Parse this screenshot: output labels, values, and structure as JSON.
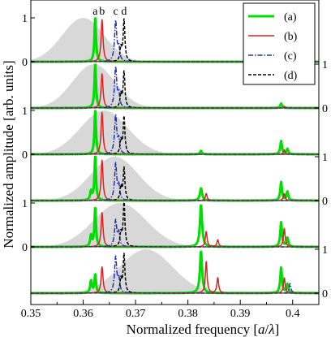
{
  "chart_data": {
    "type": "line",
    "xlabel": "Normalized frequency [a/λ]",
    "xlabel_parts": [
      "Normalized frequency [",
      "a",
      "/",
      "λ",
      "]"
    ],
    "ylabel": "Normalized amplitude [arb. units]",
    "xlim": [
      0.35,
      0.405
    ],
    "xticks": [
      {
        "value": 0.35,
        "label": "0.35"
      },
      {
        "value": 0.36,
        "label": "0.36"
      },
      {
        "value": 0.37,
        "label": "0.37"
      },
      {
        "value": 0.38,
        "label": "0.38"
      },
      {
        "value": 0.39,
        "label": "0.39"
      },
      {
        "value": 0.4,
        "label": "0.4"
      }
    ],
    "panel_tick_labels": {
      "zero": "0",
      "one": "1"
    },
    "peak_markers": [
      {
        "label": "a",
        "x": 0.3623
      },
      {
        "label": "b",
        "x": 0.3636
      },
      {
        "label": "c",
        "x": 0.3662
      },
      {
        "label": "d",
        "x": 0.3678
      }
    ],
    "legend": {
      "placement": "top-right",
      "entries": [
        {
          "label": "(a)",
          "color": "#00dd00",
          "style": "solid-thick"
        },
        {
          "label": "(b)",
          "color": "#dd2222",
          "style": "solid"
        },
        {
          "label": "(c)",
          "color": "#2233bb",
          "style": "dash-dot"
        },
        {
          "label": "(d)",
          "color": "#000000",
          "style": "dashed"
        }
      ]
    },
    "series_styles": [
      {
        "key": "a",
        "color": "#00dd00",
        "width": 3,
        "dash": ""
      },
      {
        "key": "b",
        "color": "#dd2222",
        "width": 1.5,
        "dash": ""
      },
      {
        "key": "c",
        "color": "#2233bb",
        "width": 1.5,
        "dash": "6,2,1.5,2"
      },
      {
        "key": "d",
        "color": "#000000",
        "width": 1.5,
        "dash": "4,2"
      }
    ],
    "excitation_color": "#d8d8d8",
    "panels": [
      {
        "excitation": {
          "center": 0.36,
          "width": 0.004
        },
        "series": {
          "a": [
            {
              "x": 0.3623,
              "a": 1.0,
              "w": 0.00018
            }
          ],
          "b": [
            {
              "x": 0.3636,
              "a": 0.96,
              "w": 0.00022
            }
          ],
          "c": [
            {
              "x": 0.3662,
              "a": 0.92,
              "w": 0.00025
            },
            {
              "x": 0.3668,
              "a": 0.3,
              "w": 0.0002
            }
          ],
          "d": [
            {
              "x": 0.3678,
              "a": 0.95,
              "w": 0.0002
            },
            {
              "x": 0.3672,
              "a": 0.3,
              "w": 0.0002
            }
          ]
        }
      },
      {
        "excitation": {
          "center": 0.362,
          "width": 0.004
        },
        "series": {
          "a": [
            {
              "x": 0.3623,
              "a": 1.0,
              "w": 0.00018
            },
            {
              "x": 0.3978,
              "a": 0.1,
              "w": 0.0002
            }
          ],
          "b": [
            {
              "x": 0.3636,
              "a": 0.78,
              "w": 0.00022
            },
            {
              "x": 0.3984,
              "a": 0.04,
              "w": 0.0002
            }
          ],
          "c": [
            {
              "x": 0.3662,
              "a": 0.92,
              "w": 0.00025
            },
            {
              "x": 0.3668,
              "a": 0.3,
              "w": 0.0002
            }
          ],
          "d": [
            {
              "x": 0.3678,
              "a": 0.82,
              "w": 0.0002
            },
            {
              "x": 0.3672,
              "a": 0.3,
              "w": 0.0002
            }
          ]
        }
      },
      {
        "excitation": {
          "center": 0.364,
          "width": 0.0045
        },
        "series": {
          "a": [
            {
              "x": 0.3623,
              "a": 1.0,
              "w": 0.00018
            },
            {
              "x": 0.3825,
              "a": 0.08,
              "w": 0.0002
            },
            {
              "x": 0.3978,
              "a": 0.3,
              "w": 0.0002
            },
            {
              "x": 0.399,
              "a": 0.12,
              "w": 0.0002
            }
          ],
          "b": [
            {
              "x": 0.3636,
              "a": 0.96,
              "w": 0.00022
            },
            {
              "x": 0.3984,
              "a": 0.1,
              "w": 0.0002
            }
          ],
          "c": [
            {
              "x": 0.3662,
              "a": 0.88,
              "w": 0.00025
            },
            {
              "x": 0.3668,
              "a": 0.3,
              "w": 0.0002
            }
          ],
          "d": [
            {
              "x": 0.3678,
              "a": 0.85,
              "w": 0.0002
            },
            {
              "x": 0.3672,
              "a": 0.3,
              "w": 0.0002
            }
          ]
        }
      },
      {
        "excitation": {
          "center": 0.366,
          "width": 0.0045
        },
        "series": {
          "a": [
            {
              "x": 0.3623,
              "a": 1.0,
              "w": 0.00018
            },
            {
              "x": 0.3615,
              "a": 0.2,
              "w": 0.0002
            },
            {
              "x": 0.3825,
              "a": 0.28,
              "w": 0.00025
            },
            {
              "x": 0.3978,
              "a": 0.42,
              "w": 0.0002
            },
            {
              "x": 0.399,
              "a": 0.2,
              "w": 0.0002
            }
          ],
          "b": [
            {
              "x": 0.3636,
              "a": 0.92,
              "w": 0.00022
            },
            {
              "x": 0.3835,
              "a": 0.16,
              "w": 0.0002
            },
            {
              "x": 0.3984,
              "a": 0.16,
              "w": 0.0002
            }
          ],
          "c": [
            {
              "x": 0.3662,
              "a": 0.84,
              "w": 0.00025
            },
            {
              "x": 0.3668,
              "a": 0.3,
              "w": 0.0002
            }
          ],
          "d": [
            {
              "x": 0.3678,
              "a": 0.74,
              "w": 0.0002
            },
            {
              "x": 0.3672,
              "a": 0.3,
              "w": 0.0002
            }
          ]
        }
      },
      {
        "excitation": {
          "center": 0.367,
          "width": 0.005
        },
        "series": {
          "a": [
            {
              "x": 0.3623,
              "a": 0.88,
              "w": 0.00018
            },
            {
              "x": 0.3615,
              "a": 0.25,
              "w": 0.0002
            },
            {
              "x": 0.3825,
              "a": 0.95,
              "w": 0.00025
            },
            {
              "x": 0.3978,
              "a": 0.56,
              "w": 0.0002
            },
            {
              "x": 0.399,
              "a": 0.2,
              "w": 0.0002
            }
          ],
          "b": [
            {
              "x": 0.3636,
              "a": 0.78,
              "w": 0.00022
            },
            {
              "x": 0.3835,
              "a": 0.35,
              "w": 0.0002
            },
            {
              "x": 0.3857,
              "a": 0.16,
              "w": 0.0002
            },
            {
              "x": 0.3984,
              "a": 0.42,
              "w": 0.0002
            }
          ],
          "c": [
            {
              "x": 0.3662,
              "a": 0.6,
              "w": 0.00025
            },
            {
              "x": 0.3668,
              "a": 0.3,
              "w": 0.0002
            }
          ],
          "d": [
            {
              "x": 0.3678,
              "a": 1.0,
              "w": 0.0002
            },
            {
              "x": 0.3672,
              "a": 0.3,
              "w": 0.0002
            }
          ]
        }
      },
      {
        "excitation": {
          "center": 0.372,
          "width": 0.005
        },
        "series": {
          "a": [
            {
              "x": 0.3623,
              "a": 0.42,
              "w": 0.00018
            },
            {
              "x": 0.3615,
              "a": 0.28,
              "w": 0.0002
            },
            {
              "x": 0.3825,
              "a": 0.95,
              "w": 0.00025
            },
            {
              "x": 0.3978,
              "a": 0.58,
              "w": 0.0002
            },
            {
              "x": 0.399,
              "a": 0.2,
              "w": 0.0002
            }
          ],
          "b": [
            {
              "x": 0.3636,
              "a": 0.6,
              "w": 0.00022
            },
            {
              "x": 0.3835,
              "a": 0.72,
              "w": 0.0002
            },
            {
              "x": 0.3857,
              "a": 0.35,
              "w": 0.0002
            },
            {
              "x": 0.3984,
              "a": 0.35,
              "w": 0.0002
            }
          ],
          "c": [
            {
              "x": 0.3662,
              "a": 0.82,
              "w": 0.00025
            },
            {
              "x": 0.3668,
              "a": 0.3,
              "w": 0.0002
            },
            {
              "x": 0.3995,
              "a": 0.22,
              "w": 0.0002
            }
          ],
          "d": [
            {
              "x": 0.3678,
              "a": 0.88,
              "w": 0.0002
            },
            {
              "x": 0.3672,
              "a": 0.3,
              "w": 0.0002
            }
          ]
        }
      }
    ]
  }
}
